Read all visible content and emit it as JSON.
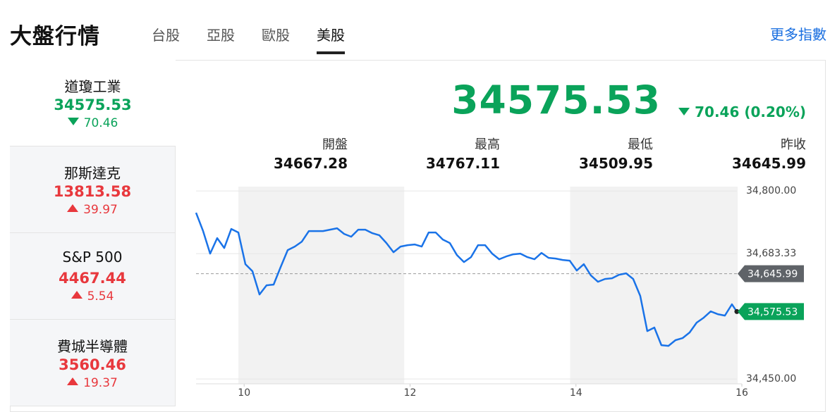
{
  "header": {
    "title": "大盤行情",
    "tabs": [
      "台股",
      "亞股",
      "歐股",
      "美股"
    ],
    "active_tab": 3,
    "more_link": "更多指數"
  },
  "colors": {
    "up": "#e8383d",
    "down": "#0aa35a"
  },
  "indices": [
    {
      "name": "道瓊工業",
      "value": 34575.53,
      "change": 70.46,
      "direction": "down"
    },
    {
      "name": "那斯達克",
      "value": 13813.58,
      "change": 39.97,
      "direction": "up"
    },
    {
      "name": "S&P 500",
      "value": 4467.44,
      "change": 5.54,
      "direction": "up"
    },
    {
      "name": "費城半導體",
      "value": 3560.46,
      "change": 19.37,
      "direction": "up"
    }
  ],
  "active_index": 0,
  "quote": {
    "value": 34575.53,
    "change": "70.46 (0.20%)",
    "direction": "down",
    "stats": [
      {
        "label": "開盤",
        "value": 34667.28
      },
      {
        "label": "最高",
        "value": 34767.11
      },
      {
        "label": "最低",
        "value": 34509.95
      },
      {
        "label": "昨收",
        "value": 34645.99
      }
    ]
  },
  "chart_data": {
    "type": "line",
    "color": "#1a73e8",
    "x": [
      9.42,
      9.505,
      9.59,
      9.675,
      9.76,
      9.845,
      9.93,
      10.015,
      10.1,
      10.185,
      10.27,
      10.355,
      10.44,
      10.525,
      10.61,
      10.695,
      10.78,
      10.865,
      10.95,
      11.035,
      11.12,
      11.205,
      11.29,
      11.375,
      11.46,
      11.545,
      11.63,
      11.715,
      11.8,
      11.885,
      11.97,
      12.055,
      12.14,
      12.225,
      12.31,
      12.395,
      12.48,
      12.565,
      12.65,
      12.735,
      12.82,
      12.905,
      12.99,
      13.075,
      13.16,
      13.245,
      13.33,
      13.415,
      13.5,
      13.585,
      13.67,
      13.755,
      13.84,
      13.925,
      14.01,
      14.095,
      14.18,
      14.265,
      14.35,
      14.435,
      14.52,
      14.605,
      14.69,
      14.775,
      14.86,
      14.945,
      15.03,
      15.115,
      15.2,
      15.285,
      15.37,
      15.455,
      15.54,
      15.625,
      15.71,
      15.795,
      15.88,
      15.94
    ],
    "values": [
      34759.4,
      34725.3,
      34683.4,
      34712.2,
      34693.8,
      34729.2,
      34722.7,
      34663.7,
      34650.6,
      34607.3,
      34624.4,
      34625.7,
      34658.5,
      34689.9,
      34696.5,
      34705.6,
      34725.3,
      34725.3,
      34725.3,
      34727.9,
      34730.5,
      34720.1,
      34714.8,
      34727.9,
      34727.9,
      34721.4,
      34717.4,
      34703.0,
      34686.0,
      34696.5,
      34699.1,
      34700.4,
      34696.5,
      34722.7,
      34722.7,
      34709.6,
      34703.0,
      34680.7,
      34667.6,
      34676.8,
      34699.1,
      34699.1,
      34683.4,
      34672.9,
      34678.1,
      34682.0,
      34683.4,
      34676.8,
      34672.9,
      34684.7,
      34675.5,
      34674.2,
      34671.6,
      34670.3,
      34651.9,
      34663.7,
      34642.7,
      34630.9,
      34636.2,
      34637.5,
      34644.0,
      34646.7,
      34636.2,
      34604.7,
      34539.2,
      34545.7,
      34513.0,
      34511.7,
      34522.2,
      34526.1,
      34536.6,
      34554.9,
      34564.1,
      34575.9,
      34570.6,
      34568.0,
      34589.0,
      34575.53
    ],
    "xlim": [
      9.42,
      16.0
    ],
    "ylim": [
      34441,
      34808
    ],
    "xticks": [
      10,
      12,
      14,
      16
    ],
    "yticks": [
      {
        "value": 34800,
        "label": "34,800.00"
      },
      {
        "value": 34683.33,
        "label": "34,683.33"
      },
      {
        "value": 34450,
        "label": "34,450.00"
      }
    ],
    "grid": true,
    "bands": [
      [
        9.93,
        11.93
      ],
      [
        13.93,
        15.95
      ]
    ],
    "reference_line": {
      "value": 34645.99,
      "label": "34,645.99",
      "color": "#5f6368"
    },
    "last_label": {
      "value": 34575.53,
      "label": "34,575.53",
      "color": "#0aa35a"
    }
  }
}
